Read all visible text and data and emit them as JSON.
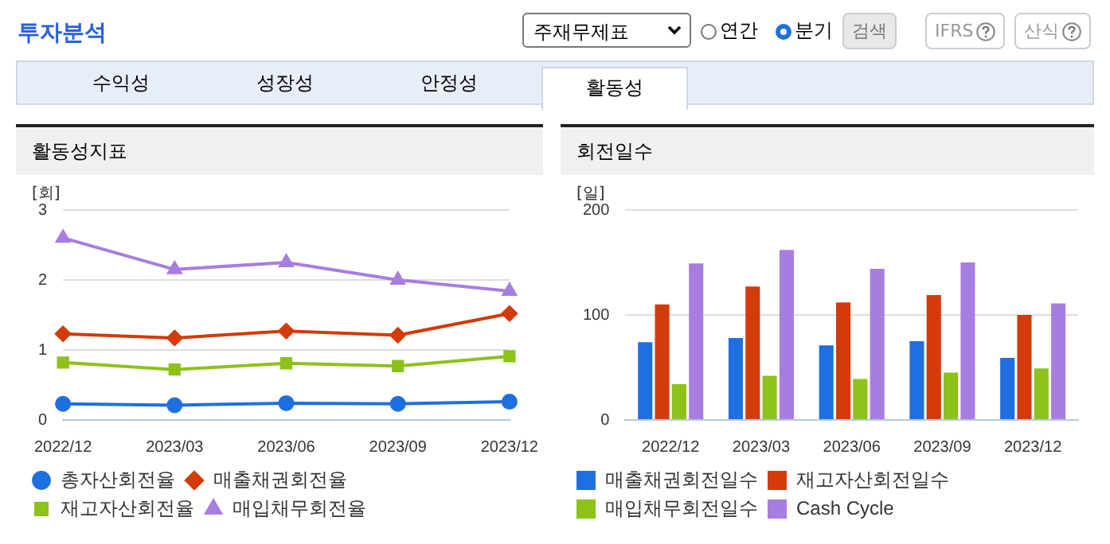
{
  "chart_data": [
    {
      "type": "other",
      "title": "투자분석",
      "annotations": [
        "주재무제표",
        "연간",
        "분기",
        "검색",
        "IFRS",
        "산식",
        "수익성",
        "성장성",
        "안정성",
        "활동성"
      ]
    },
    {
      "type": "line",
      "title": "활동성지표",
      "ylabel": "[회]",
      "categories": [
        "2022/12",
        "2023/03",
        "2023/06",
        "2023/09",
        "2023/12"
      ],
      "ylim": [
        0,
        3
      ],
      "yticks": [
        0,
        1,
        2,
        3
      ],
      "grid": "y",
      "legend": "bottom",
      "series": [
        {
          "name": "총자산회전율",
          "color": "#1f6fe0",
          "marker": "circle",
          "values": [
            0.23,
            0.21,
            0.24,
            0.23,
            0.26
          ]
        },
        {
          "name": "매출채권회전율",
          "color": "#d43a0a",
          "marker": "diamond",
          "values": [
            1.23,
            1.17,
            1.27,
            1.21,
            1.52
          ]
        },
        {
          "name": "재고자산회전율",
          "color": "#8cc21a",
          "marker": "square",
          "values": [
            0.82,
            0.72,
            0.81,
            0.77,
            0.91
          ]
        },
        {
          "name": "매입채무회전율",
          "color": "#a87de0",
          "marker": "triangle",
          "values": [
            2.6,
            2.15,
            2.25,
            2.0,
            1.84
          ]
        }
      ]
    },
    {
      "type": "bar",
      "title": "회전일수",
      "ylabel": "[일]",
      "categories": [
        "2022/12",
        "2023/03",
        "2023/06",
        "2023/09",
        "2023/12"
      ],
      "ylim": [
        0,
        200
      ],
      "yticks": [
        0,
        100,
        200
      ],
      "grid": "y",
      "legend": "bottom",
      "series": [
        {
          "name": "매출채권회전일수",
          "color": "#1f6fe0",
          "values": [
            74,
            78,
            71,
            75,
            59
          ]
        },
        {
          "name": "재고자산회전일수",
          "color": "#d43a0a",
          "values": [
            110,
            127,
            112,
            119,
            100
          ]
        },
        {
          "name": "매입채무회전일수",
          "color": "#8cc21a",
          "values": [
            34,
            42,
            39,
            45,
            49
          ]
        },
        {
          "name": "Cash Cycle",
          "color": "#a87de0",
          "values": [
            149,
            162,
            144,
            150,
            111
          ]
        }
      ]
    }
  ]
}
